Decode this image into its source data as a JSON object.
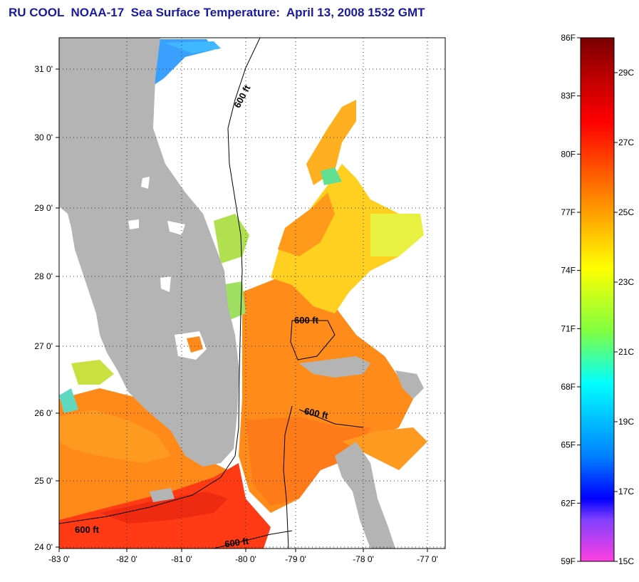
{
  "title": "RU COOL  NOAA-17  Sea Surface Temperature:  April 13, 2008 1532 GMT",
  "map": {
    "lon_ticks": [
      "-83 0'",
      "-82 0'",
      "-81 0'",
      "-80 0'",
      "-79 0'",
      "-78 0'",
      "-77 0'"
    ],
    "lat_ticks": [
      "31 0'",
      "30 0'",
      "29 0'",
      "28 0'",
      "27 0'",
      "26 0'",
      "25 0'",
      "24 0'"
    ],
    "contour_label": "600 ft",
    "land_color": "#b4b4b4",
    "grid": "dotted"
  },
  "colorbar": {
    "fahrenheit_labels": [
      "86F",
      "83F",
      "80F",
      "77F",
      "74F",
      "71F",
      "68F",
      "65F",
      "62F",
      "59F"
    ],
    "celsius_labels": [
      "29C",
      "27C",
      "25C",
      "23C",
      "21C",
      "19C",
      "17C",
      "15C"
    ],
    "colors": [
      "#7a0000",
      "#ff0000",
      "#ff8000",
      "#ffff00",
      "#80ff40",
      "#00ffff",
      "#0080ff",
      "#0000ff",
      "#ff33cc"
    ]
  }
}
